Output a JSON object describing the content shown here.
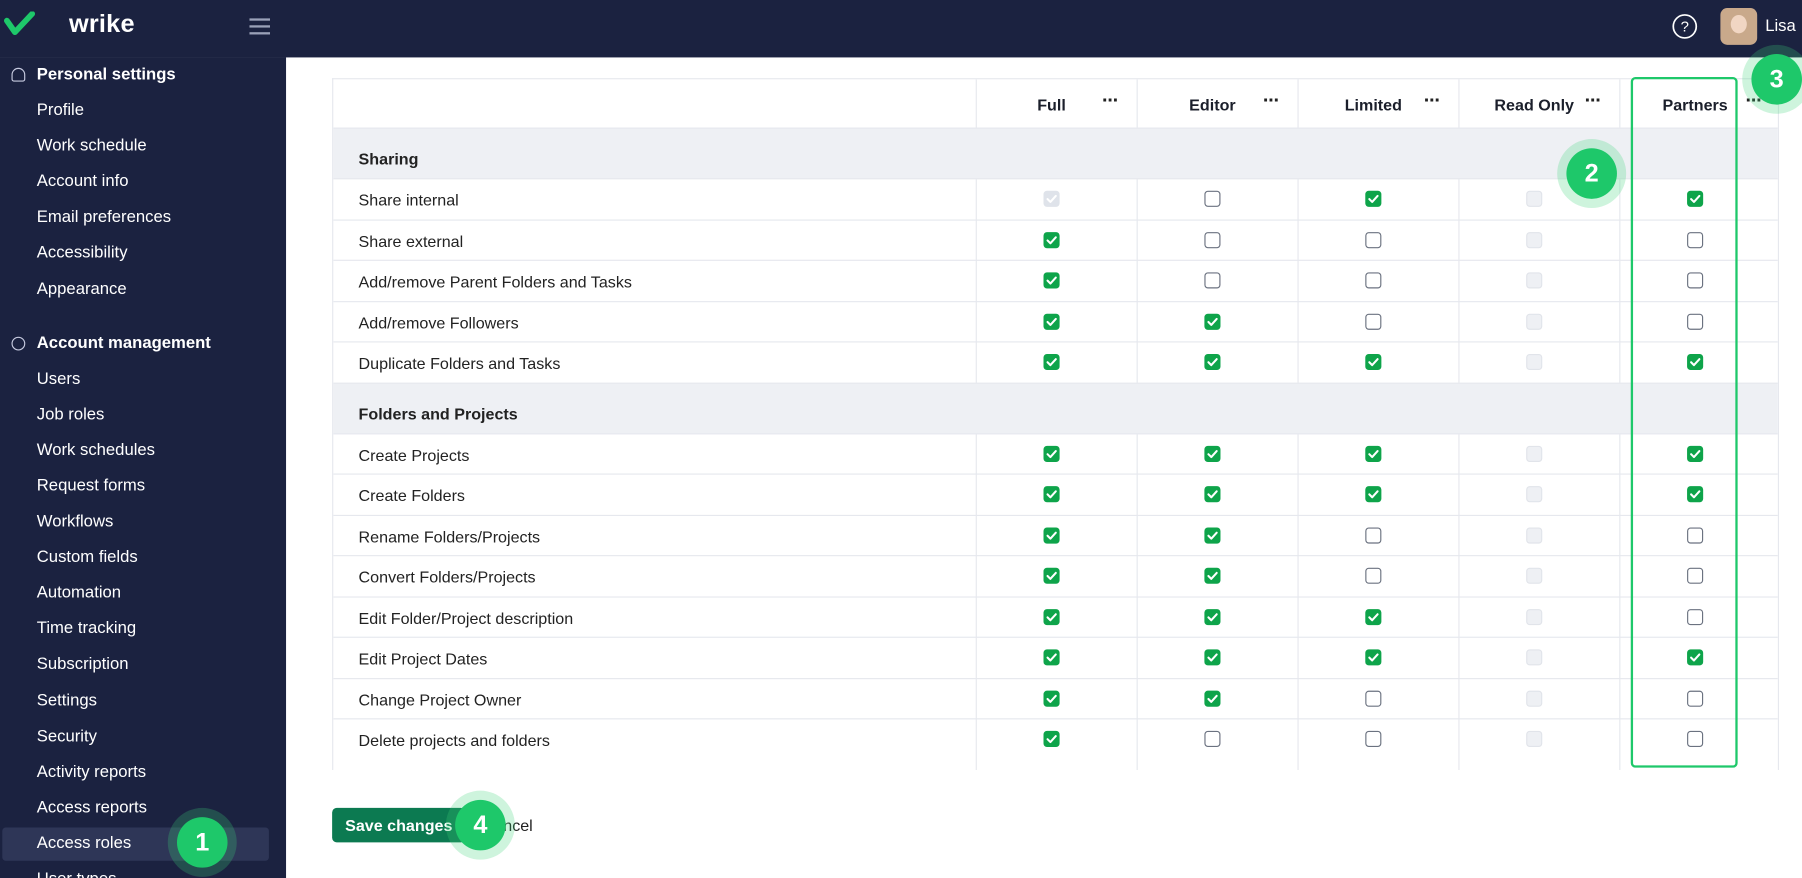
{
  "header": {
    "logo": "wrike",
    "user": "Lisa"
  },
  "sidebar": {
    "sections": [
      {
        "title": "Personal settings",
        "items": [
          "Profile",
          "Work schedule",
          "Account info",
          "Email preferences",
          "Accessibility",
          "Appearance"
        ]
      },
      {
        "title": "Account management",
        "items": [
          "Users",
          "Job roles",
          "Work schedules",
          "Request forms",
          "Workflows",
          "Custom fields",
          "Automation",
          "Time tracking",
          "Subscription",
          "Settings",
          "Security",
          "Activity reports",
          "Access reports",
          "Access roles",
          "User types"
        ]
      }
    ],
    "active": "Access roles"
  },
  "table": {
    "roles": [
      "Full",
      "Editor",
      "Limited",
      "Read Only",
      "Partners"
    ],
    "highlight_role": "Partners",
    "groups": [
      {
        "title": "Sharing",
        "rows": [
          {
            "label": "Share internal",
            "states": [
              "disabled-checked",
              "unchecked",
              "checked",
              "disabled",
              "checked"
            ]
          },
          {
            "label": "Share external",
            "states": [
              "checked",
              "unchecked",
              "unchecked",
              "disabled",
              "unchecked"
            ]
          },
          {
            "label": "Add/remove Parent Folders and Tasks",
            "states": [
              "checked",
              "unchecked",
              "unchecked",
              "disabled",
              "unchecked"
            ]
          },
          {
            "label": "Add/remove Followers",
            "states": [
              "checked",
              "checked",
              "unchecked",
              "disabled",
              "unchecked"
            ]
          },
          {
            "label": "Duplicate Folders and Tasks",
            "states": [
              "checked",
              "checked",
              "checked",
              "disabled",
              "checked"
            ]
          }
        ]
      },
      {
        "title": "Folders and Projects",
        "rows": [
          {
            "label": "Create Projects",
            "states": [
              "checked",
              "checked",
              "checked",
              "disabled",
              "checked"
            ]
          },
          {
            "label": "Create Folders",
            "states": [
              "checked",
              "checked",
              "checked",
              "disabled",
              "checked"
            ]
          },
          {
            "label": "Rename Folders/Projects",
            "states": [
              "checked",
              "checked",
              "unchecked",
              "disabled",
              "unchecked"
            ]
          },
          {
            "label": "Convert Folders/Projects",
            "states": [
              "checked",
              "checked",
              "unchecked",
              "disabled",
              "unchecked"
            ]
          },
          {
            "label": "Edit Folder/Project description",
            "states": [
              "checked",
              "checked",
              "checked",
              "disabled",
              "unchecked"
            ]
          },
          {
            "label": "Edit Project Dates",
            "states": [
              "checked",
              "checked",
              "checked",
              "disabled",
              "checked"
            ]
          },
          {
            "label": "Change Project Owner",
            "states": [
              "checked",
              "checked",
              "unchecked",
              "disabled",
              "unchecked"
            ]
          },
          {
            "label": "Delete projects and folders",
            "states": [
              "checked",
              "unchecked",
              "unchecked",
              "disabled",
              "unchecked"
            ]
          }
        ]
      }
    ]
  },
  "buttons": {
    "save": "Save changes",
    "cancel": "Cancel"
  },
  "markers": [
    1,
    2,
    3,
    4
  ]
}
